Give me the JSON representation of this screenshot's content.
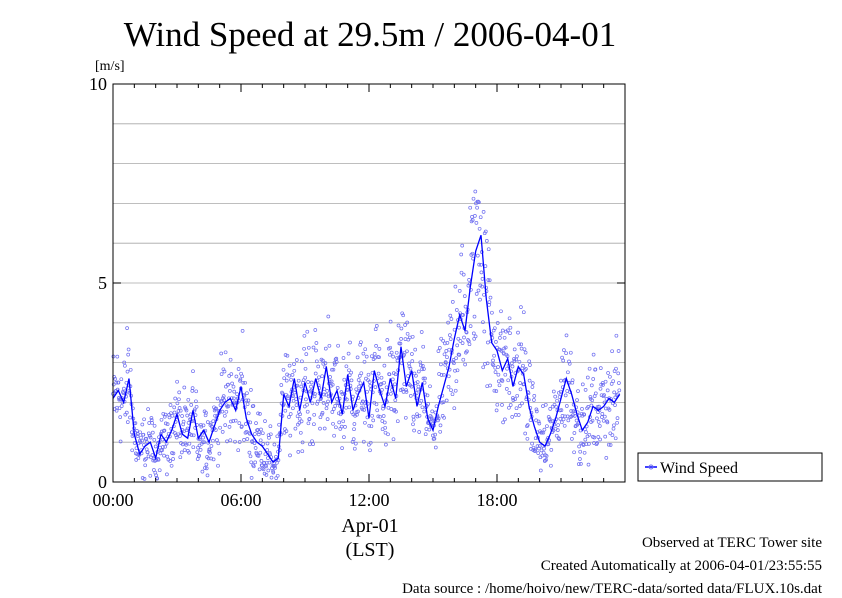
{
  "chart_data": {
    "type": "line",
    "title": "Wind Speed at 29.5m / 2006-04-01",
    "ylabel": "[m/s]",
    "xlabel_date": "Apr-01",
    "xlabel_tz": "(LST)",
    "x_unit": "hour of day",
    "xlim": [
      0,
      24
    ],
    "ylim": [
      0,
      10
    ],
    "x_ticks": [
      {
        "value": 0,
        "label": "00:00"
      },
      {
        "value": 6,
        "label": "06:00"
      },
      {
        "value": 12,
        "label": "12:00"
      },
      {
        "value": 18,
        "label": "18:00"
      }
    ],
    "y_ticks": [
      {
        "value": 0,
        "label": "0"
      },
      {
        "value": 5,
        "label": "5"
      },
      {
        "value": 10,
        "label": "10"
      }
    ],
    "grid": true,
    "legend_position": "bottom-right",
    "series": [
      {
        "name": "Wind Speed",
        "color": "#0000ff",
        "scatter_color": "#6e6ef0",
        "x": [
          0.0,
          0.25,
          0.5,
          0.75,
          1.0,
          1.25,
          1.5,
          1.75,
          2.0,
          2.25,
          2.5,
          2.75,
          3.0,
          3.25,
          3.5,
          3.75,
          4.0,
          4.25,
          4.5,
          4.75,
          5.0,
          5.25,
          5.5,
          5.75,
          6.0,
          6.25,
          6.5,
          6.75,
          7.0,
          7.25,
          7.5,
          7.75,
          8.0,
          8.25,
          8.5,
          8.75,
          9.0,
          9.25,
          9.5,
          9.75,
          10.0,
          10.25,
          10.5,
          10.75,
          11.0,
          11.25,
          11.5,
          11.75,
          12.0,
          12.25,
          12.5,
          12.75,
          13.0,
          13.25,
          13.5,
          13.75,
          14.0,
          14.25,
          14.5,
          14.75,
          15.0,
          15.25,
          15.5,
          15.75,
          16.0,
          16.25,
          16.5,
          16.75,
          17.0,
          17.25,
          17.5,
          17.75,
          18.0,
          18.25,
          18.5,
          18.75,
          19.0,
          19.25,
          19.5,
          19.75,
          20.0,
          20.25,
          20.5,
          20.75,
          21.0,
          21.25,
          21.5,
          21.75,
          22.0,
          22.25,
          22.5,
          22.75,
          23.0,
          23.25,
          23.5,
          23.75
        ],
        "values": [
          2.1,
          2.3,
          2.0,
          2.6,
          1.2,
          0.7,
          0.9,
          1.0,
          0.6,
          1.2,
          1.0,
          1.3,
          1.7,
          1.2,
          1.1,
          1.8,
          1.1,
          1.3,
          1.0,
          1.4,
          1.8,
          2.0,
          2.1,
          1.8,
          2.4,
          1.6,
          1.2,
          1.0,
          0.9,
          0.7,
          0.5,
          0.6,
          2.2,
          1.9,
          2.6,
          1.8,
          2.5,
          2.0,
          2.6,
          2.1,
          2.9,
          2.0,
          2.3,
          1.7,
          2.7,
          1.8,
          2.2,
          2.5,
          1.6,
          2.8,
          2.3,
          1.9,
          2.6,
          2.1,
          3.4,
          2.4,
          2.8,
          1.9,
          2.5,
          1.6,
          1.3,
          1.9,
          2.4,
          2.9,
          3.6,
          4.2,
          3.8,
          4.9,
          5.8,
          6.2,
          4.6,
          3.5,
          3.3,
          2.8,
          3.1,
          2.4,
          2.9,
          2.7,
          1.9,
          1.4,
          1.0,
          0.9,
          1.2,
          1.6,
          2.1,
          2.6,
          2.2,
          1.7,
          1.3,
          1.5,
          1.9,
          1.8,
          1.9,
          2.1,
          2.0,
          2.2
        ]
      }
    ]
  },
  "footer": {
    "line1": "Observed at TERC Tower site",
    "line2": "Created Automatically at 2006-04-01/23:55:55",
    "line3": "Data source : /home/hoivo/new/TERC-data/sorted  data/FLUX.10s.dat"
  }
}
